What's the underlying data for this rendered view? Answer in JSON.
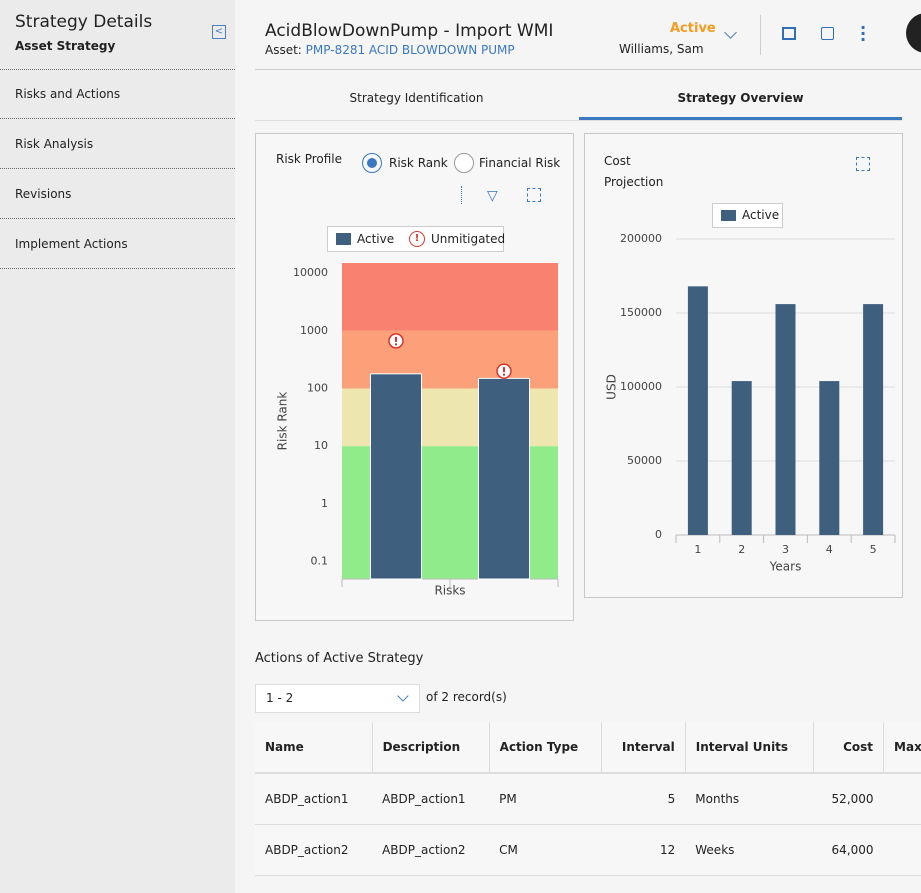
{
  "sidebar": {
    "title": "Strategy Details",
    "subtitle": "Asset Strategy",
    "items": [
      "Risks and Actions",
      "Risk Analysis",
      "Revisions",
      "Implement Actions"
    ]
  },
  "header": {
    "title": "AcidBlowDownPump - Import WMI",
    "asset_label": "Asset:",
    "asset": "PMP-8281 ACID BLOWDOWN PUMP",
    "status": "Active",
    "owner": "Williams, Sam"
  },
  "tabs": [
    "Strategy Identification",
    "Strategy Overview"
  ],
  "risk_profile": {
    "type": "bar",
    "title": "Risk Profile",
    "options": [
      "Risk Rank",
      "Financial Risk"
    ],
    "categories": [
      null,
      null
    ],
    "series": [
      {
        "name": "Active",
        "color": "#3f5f7f",
        "values": [
          180,
          150
        ]
      }
    ],
    "unmitigated": {
      "name": "Unmitigated",
      "color": "#d9342b",
      "values": [
        670,
        200
      ]
    },
    "xlabel": "Risks",
    "ylabel": "Risk Rank",
    "log_scale": true,
    "ylim": [
      0.05,
      15000
    ],
    "yticks": [
      0.1,
      1,
      10,
      100,
      1000,
      10000
    ],
    "bands": [
      {
        "from": 1000,
        "to": 15000,
        "color": "#f98170"
      },
      {
        "from": 100,
        "to": 1000,
        "color": "#fca07a"
      },
      {
        "from": 10,
        "to": 100,
        "color": "#ede6ae"
      },
      {
        "from": 0.05,
        "to": 10,
        "color": "#90ec8a"
      }
    ]
  },
  "cost_projection": {
    "type": "bar",
    "title": "Cost Projection",
    "categories": [
      "1",
      "2",
      "3",
      "4",
      "5"
    ],
    "series": [
      {
        "name": "Active",
        "color": "#3f5f7f",
        "values": [
          168000,
          104000,
          156000,
          104000,
          156000
        ]
      }
    ],
    "xlabel": "Years",
    "ylabel": "USD",
    "grid": true,
    "ylim": [
      0,
      200000
    ],
    "yticks": [
      0,
      50000,
      100000,
      150000,
      200000
    ]
  },
  "actions": {
    "title": "Actions of Active Strategy",
    "pager": "1 - 2",
    "records": "of 2 record(s)",
    "columns": [
      "Name",
      "Description",
      "Action Type",
      "Interval",
      "Interval Units",
      "Cost",
      "Max U"
    ],
    "rows": [
      [
        "ABDP_action1",
        "ABDP_action1",
        "PM",
        "5",
        "Months",
        "52,000"
      ],
      [
        "ABDP_action2",
        "ABDP_action2",
        "CM",
        "12",
        "Weeks",
        "64,000"
      ]
    ]
  }
}
